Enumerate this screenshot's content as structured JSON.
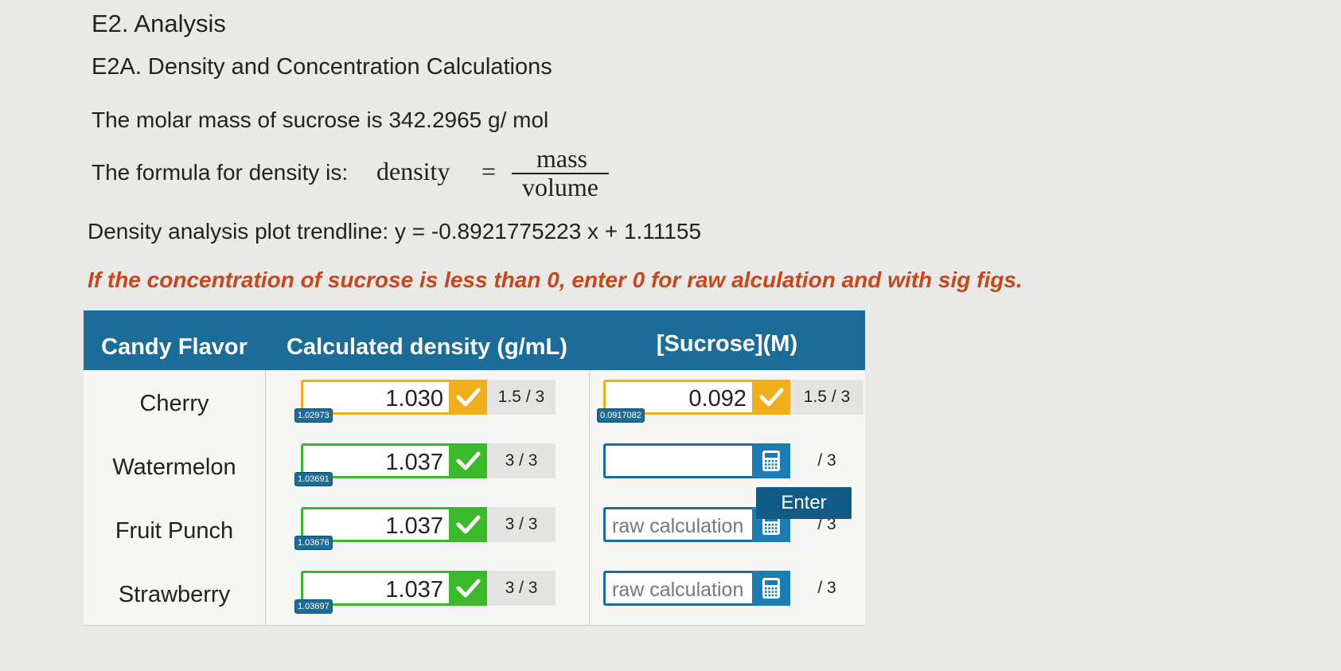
{
  "heading": "E2. Analysis",
  "subheading": "E2A. Density and Concentration Calculations",
  "molar_mass": "The molar mass of sucrose is 342.2965 g/ mol",
  "formula": {
    "label": "The formula for density is:",
    "lhs": "density",
    "eq": "=",
    "numerator": "mass",
    "denominator": "volume"
  },
  "trendline": "Density analysis plot trendline: y = -0.8921775223 x + 1.11155",
  "instruction": "If the concentration of sucrose is less than 0, enter 0 for raw alculation and with sig figs.",
  "table": {
    "headers": [
      "Candy Flavor",
      "Calculated density (g/mL)",
      "[Sucrose](M)"
    ],
    "rows": [
      {
        "flavor": "Cherry",
        "density": {
          "value": "1.030",
          "hint": "1.02973",
          "score": "1.5 / 3"
        },
        "sucrose": {
          "value": "0.092",
          "hint": "0.0917082",
          "score": "1.5 / 3"
        }
      },
      {
        "flavor": "Watermelon",
        "density": {
          "value": "1.037",
          "hint": "1.03691",
          "score": "3 / 3"
        },
        "sucrose": {
          "score": "/ 3"
        }
      },
      {
        "flavor": "Fruit Punch",
        "density": {
          "value": "1.037",
          "hint": "1.03676",
          "score": "3 / 3"
        },
        "sucrose": {
          "placeholder": "raw calculation",
          "score": "/ 3"
        }
      },
      {
        "flavor": "Strawberry",
        "density": {
          "value": "1.037",
          "hint": "1.03697",
          "score": "3 / 3"
        },
        "sucrose": {
          "placeholder": "raw calculation",
          "score": "/ 3"
        }
      }
    ]
  },
  "enter_button": "Enter"
}
